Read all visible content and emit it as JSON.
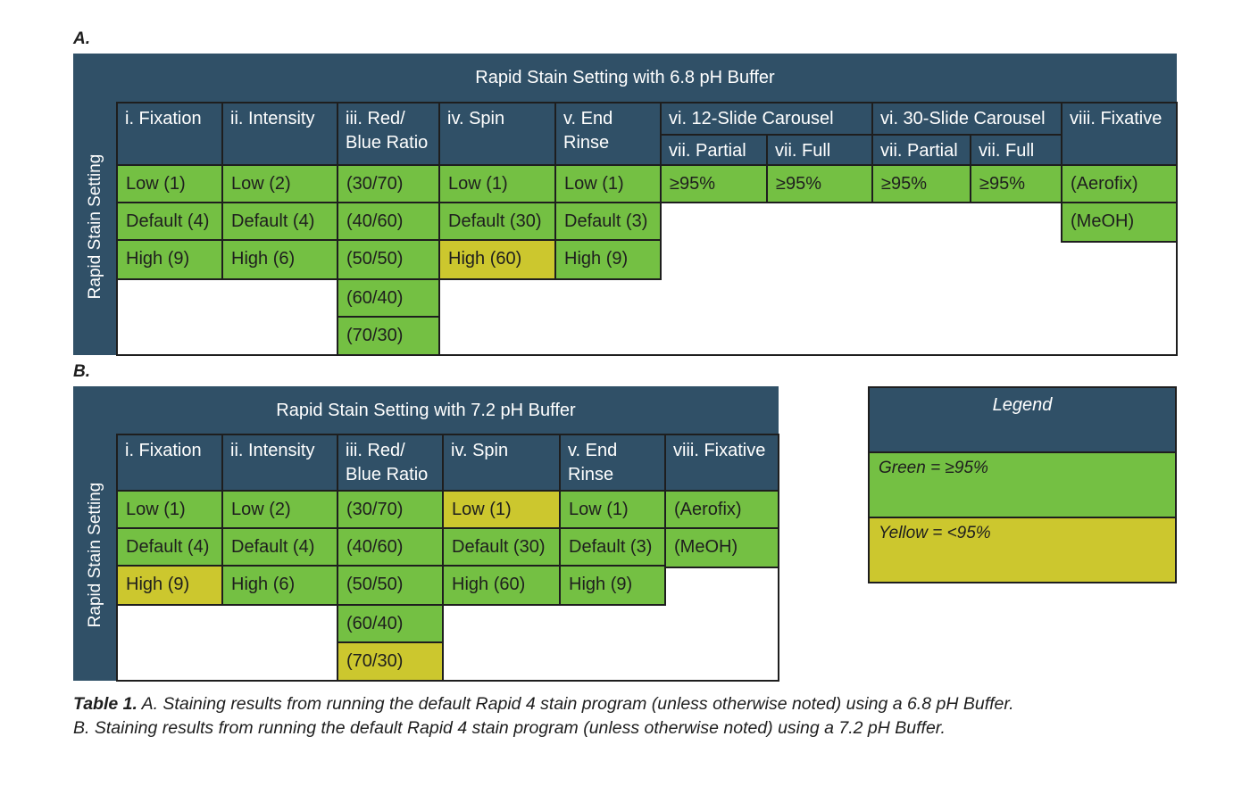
{
  "panelA": {
    "label": "A.",
    "title": "Rapid Stain Setting with 6.8 pH Buffer",
    "side_label": "Rapid Stain Setting",
    "headers": {
      "fixation": "i. Fixation",
      "intensity": "ii. Intensity",
      "ratio_1": "iii. Red/",
      "ratio_2": "Blue Ratio",
      "spin": "iv. Spin",
      "end_rinse_1": "v. End",
      "end_rinse_2": "Rinse",
      "carousel12": "vi. 12-Slide Carousel",
      "carousel30": "vi. 30-Slide Carousel",
      "partial12": "vii. Partial",
      "full12": "vii. Full",
      "partial30": "vii. Partial",
      "full30": "vii. Full",
      "fixative": "viii. Fixative"
    },
    "fixation": [
      "Low (1)",
      "Default (4)",
      "High (9)"
    ],
    "intensity": [
      "Low (2)",
      "Default (4)",
      "High (6)"
    ],
    "ratio": [
      "(30/70)",
      "(40/60)",
      "(50/50)",
      "(60/40)",
      "(70/30)"
    ],
    "spin": [
      "Low (1)",
      "Default (30)",
      "High (60)"
    ],
    "end_rinse": [
      "Low (1)",
      "Default (3)",
      "High (9)"
    ],
    "carousel": [
      "≥95%",
      "≥95%",
      "≥95%",
      "≥95%"
    ],
    "fixative": [
      "(Aerofix)",
      "(MeOH)"
    ]
  },
  "panelB": {
    "label": "B.",
    "title": "Rapid Stain Setting with 7.2 pH Buffer",
    "side_label": "Rapid Stain Setting",
    "headers": {
      "fixation": "i. Fixation",
      "intensity": "ii. Intensity",
      "ratio_1": "iii. Red/",
      "ratio_2": "Blue Ratio",
      "spin": "iv. Spin",
      "end_rinse_1": "v. End",
      "end_rinse_2": "Rinse",
      "fixative": "viii. Fixative"
    },
    "fixation": [
      "Low (1)",
      "Default (4)",
      "High (9)"
    ],
    "intensity": [
      "Low (2)",
      "Default (4)",
      "High (6)"
    ],
    "ratio": [
      "(30/70)",
      "(40/60)",
      "(50/50)",
      "(60/40)",
      "(70/30)"
    ],
    "spin": [
      "Low (1)",
      "Default (30)",
      "High (60)"
    ],
    "end_rinse": [
      "Low (1)",
      "Default (3)",
      "High (9)"
    ],
    "fixative": [
      "(Aerofix)",
      "(MeOH)"
    ]
  },
  "legend": {
    "title": "Legend",
    "green": "Green = ≥95%",
    "yellow": "Yellow = <95%"
  },
  "colors": {
    "header": "#305067",
    "green": "#74c043",
    "yellow": "#ccc72e"
  },
  "caption": {
    "bold": "Table 1.",
    "line1": " A. Staining results from running the default Rapid 4 stain program (unless otherwise noted) using a 6.8 pH Buffer.",
    "line2": "B. Staining results from running the default Rapid 4 stain program (unless otherwise noted) using a 7.2 pH Buffer."
  }
}
